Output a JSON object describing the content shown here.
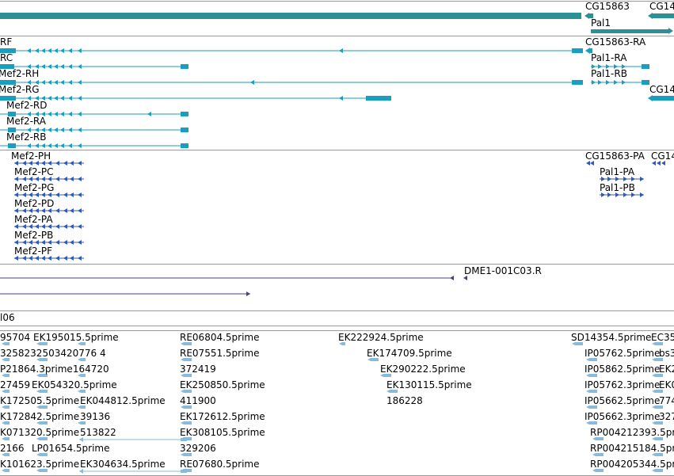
{
  "colors": {
    "gene": "#2b9197",
    "transcript": "#199ec0",
    "protein": "#2e59b8",
    "sequence": "#4b3f86",
    "est": "#86bbdc",
    "separator": "#9a9a9a"
  },
  "gene_track": {
    "labels": [
      "CG15863",
      "CG14",
      "Pal1"
    ]
  },
  "transcript_track": {
    "labels": [
      "RF",
      "CG15863-RA",
      "RC",
      "Pal1-RA",
      "Mef2-RH",
      "Pal1-RB",
      "Mef2-RG",
      "CG14",
      "Mef2-RD",
      "Mef2-RA",
      "Mef2-RB"
    ]
  },
  "protein_track": {
    "labels": [
      "Mef2-PH",
      "CG15863-PA",
      "CG14",
      "Mef2-PC",
      "Pal1-PA",
      "Mef2-PG",
      "Pal1-PB",
      "Mef2-PD",
      "Mef2-PA",
      "Mef2-PB",
      "Mef2-PF"
    ]
  },
  "sequence_track": {
    "labels": [
      "DME1-001C03.R"
    ]
  },
  "thin_track": {
    "labels": [
      "l06"
    ]
  },
  "est_track": {
    "labels": [
      "95704",
      "EK195015.5prime",
      "RE06804.5prime",
      "EK222924.5prime",
      "SD14354.5prime",
      "EC35",
      "3258232503420776 4",
      "RE07551.5prime",
      "EK174709.5prime",
      "IP05762.5prime",
      "bs3",
      "P21864.3prime164720",
      "372419",
      "EK290222.5prime",
      "IP05862.5prime",
      "EK2",
      "27459",
      "EK054320.5prime",
      "EK250850.5prime",
      "EK130115.5prime",
      "IP05762.3prime",
      "EK0",
      "K172505.5prime",
      "EK044812.5prime",
      "411900",
      "186228",
      "IP05662.5prime",
      "774",
      "K172842.5prime",
      "39136",
      "EK172612.5prime",
      "IP05662.3prime",
      "327",
      "K071320.5prime",
      "513822",
      "EK308105.5prime",
      "RP004212393.5prime",
      "2166",
      "LP01654.5prime",
      "329206",
      "RP004215184.5prime",
      "K101623.5prime",
      "EK304634.5prime",
      "RE07680.5prime",
      "RP004205344.5prime"
    ]
  }
}
